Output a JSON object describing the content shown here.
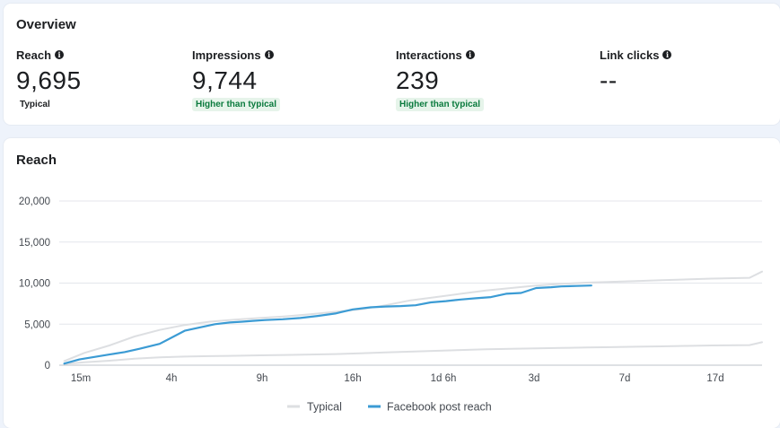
{
  "overview": {
    "title": "Overview",
    "metrics": [
      {
        "label": "Reach",
        "value": "9,695",
        "badge": "Typical"
      },
      {
        "label": "Impressions",
        "value": "9,744",
        "badge": "Higher than typical"
      },
      {
        "label": "Interactions",
        "value": "239",
        "badge": "Higher than typical"
      },
      {
        "label": "Link clicks",
        "value": "--",
        "badge": ""
      }
    ]
  },
  "colors": {
    "facebook_line": "#3b9bd4",
    "typical_line": "#dddfe2",
    "higher_badge_text": "#0a7a3d",
    "higher_badge_bg": "#e6f4ea"
  },
  "chart_data": {
    "type": "line",
    "title": "Reach",
    "xlabel": "",
    "ylabel": "",
    "ylim": [
      0,
      20000
    ],
    "yticks": [
      "0",
      "5,000",
      "10,000",
      "15,000",
      "20,000"
    ],
    "ytick_values": [
      0,
      5000,
      10000,
      15000,
      20000
    ],
    "xticks": [
      "15m",
      "4h",
      "9h",
      "16h",
      "1d 6h",
      "3d",
      "7d",
      "17d"
    ],
    "x_range": [
      0,
      28
    ],
    "legend": [
      "Typical",
      "Facebook post reach"
    ],
    "series": [
      {
        "name": "Typical upper",
        "legend": "Typical",
        "x": [
          0.2,
          1,
          2,
          3,
          4,
          5,
          6,
          7,
          8,
          9,
          10,
          11,
          12,
          13,
          14,
          15,
          16,
          17,
          18,
          19,
          20,
          21,
          22,
          23,
          24,
          25,
          26,
          27.5,
          28
        ],
        "values": [
          500,
          1500,
          2400,
          3500,
          4300,
          4900,
          5300,
          5550,
          5750,
          5950,
          6200,
          6500,
          6800,
          7300,
          7900,
          8300,
          8700,
          9100,
          9400,
          9700,
          9900,
          10050,
          10150,
          10250,
          10350,
          10450,
          10550,
          10650,
          11400
        ]
      },
      {
        "name": "Typical lower",
        "legend": "Typical",
        "x": [
          0.2,
          1,
          2,
          3,
          4,
          5,
          6,
          7,
          8,
          9,
          10,
          11,
          12,
          13,
          14,
          15,
          16,
          17,
          18,
          19,
          20,
          21,
          22,
          23,
          24,
          25,
          26,
          27.5,
          28
        ],
        "values": [
          150,
          350,
          550,
          800,
          950,
          1050,
          1100,
          1150,
          1200,
          1250,
          1300,
          1350,
          1450,
          1550,
          1650,
          1750,
          1850,
          1950,
          2000,
          2050,
          2100,
          2150,
          2200,
          2250,
          2300,
          2350,
          2400,
          2450,
          2800
        ]
      },
      {
        "name": "Facebook post reach",
        "legend": "Facebook post reach",
        "x": [
          0.2,
          0.8,
          1.4,
          2,
          2.6,
          3.2,
          4,
          5,
          5.6,
          6.2,
          6.8,
          7.3,
          7.7,
          8.2,
          8.9,
          9.6,
          10.3,
          11,
          11.7,
          12.4,
          13,
          13.6,
          14.2,
          14.8,
          15.4,
          16,
          16.6,
          17.2,
          17.8,
          18.4,
          19,
          19.6,
          20,
          20.6,
          21.2
        ],
        "values": [
          200,
          700,
          1000,
          1300,
          1600,
          2000,
          2600,
          4200,
          4600,
          5000,
          5200,
          5300,
          5400,
          5500,
          5600,
          5750,
          6000,
          6300,
          6800,
          7050,
          7150,
          7200,
          7300,
          7650,
          7800,
          8000,
          8150,
          8300,
          8700,
          8800,
          9400,
          9500,
          9600,
          9650,
          9700
        ]
      }
    ]
  }
}
